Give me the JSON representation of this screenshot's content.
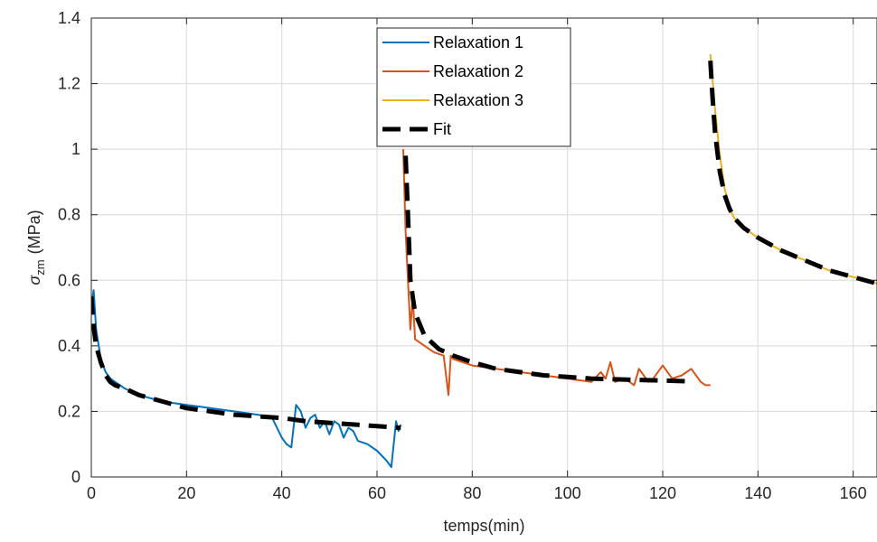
{
  "chart_data": {
    "type": "line",
    "title": "",
    "xlabel": "temps(min)",
    "ylabel_symbol": "σ",
    "ylabel_sub": "zm",
    "ylabel_unit": "(MPa)",
    "xlim": [
      0,
      165
    ],
    "ylim": [
      0,
      1.4
    ],
    "xticks": [
      0,
      20,
      40,
      60,
      80,
      100,
      120,
      140,
      160
    ],
    "yticks": [
      0,
      0.2,
      0.4,
      0.6,
      0.8,
      1,
      1.2,
      1.4
    ],
    "xtick_labels": [
      "0",
      "20",
      "40",
      "60",
      "80",
      "100",
      "120",
      "140",
      "160"
    ],
    "ytick_labels": [
      "0",
      "0.2",
      "0.4",
      "0.6",
      "0.8",
      "1",
      "1.2",
      "1.4"
    ],
    "grid": true,
    "legend_position": "top-center",
    "series": [
      {
        "name": "Relaxation 1",
        "color": "#0072BD",
        "style": "solid",
        "x": [
          0,
          0.5,
          1,
          2,
          3,
          4,
          5,
          7,
          10,
          15,
          20,
          25,
          30,
          35,
          38,
          40,
          41,
          42,
          43,
          44,
          45,
          46,
          47,
          48,
          49,
          50,
          51,
          52,
          53,
          54,
          55,
          56,
          58,
          60,
          62,
          63,
          64,
          64.5,
          65
        ],
        "y": [
          0.52,
          0.57,
          0.45,
          0.36,
          0.32,
          0.3,
          0.29,
          0.27,
          0.25,
          0.23,
          0.22,
          0.21,
          0.2,
          0.19,
          0.18,
          0.12,
          0.1,
          0.09,
          0.22,
          0.2,
          0.15,
          0.18,
          0.19,
          0.15,
          0.17,
          0.13,
          0.17,
          0.16,
          0.12,
          0.15,
          0.14,
          0.11,
          0.1,
          0.08,
          0.05,
          0.03,
          0.17,
          0.14,
          0.16
        ]
      },
      {
        "name": "Relaxation 2",
        "color": "#D95319",
        "style": "solid",
        "x": [
          65.5,
          66,
          66.5,
          67,
          67.5,
          68,
          70,
          72,
          74,
          75,
          75.5,
          76,
          80,
          85,
          90,
          95,
          100,
          105,
          107,
          108,
          109,
          110,
          112,
          114,
          115,
          117,
          118,
          120,
          122,
          124,
          126,
          128,
          129,
          130
        ],
        "y": [
          1.0,
          0.75,
          0.6,
          0.45,
          0.55,
          0.42,
          0.4,
          0.38,
          0.37,
          0.25,
          0.37,
          0.36,
          0.34,
          0.33,
          0.32,
          0.31,
          0.3,
          0.29,
          0.32,
          0.3,
          0.35,
          0.29,
          0.3,
          0.28,
          0.33,
          0.29,
          0.3,
          0.34,
          0.3,
          0.31,
          0.33,
          0.29,
          0.28,
          0.28
        ]
      },
      {
        "name": "Relaxation 3",
        "color": "#EDB120",
        "style": "solid",
        "x": [
          130,
          131,
          132,
          133,
          134,
          135,
          137,
          140,
          145,
          150,
          155,
          160,
          165
        ],
        "y": [
          1.29,
          1.12,
          0.98,
          0.88,
          0.82,
          0.79,
          0.76,
          0.73,
          0.69,
          0.66,
          0.63,
          0.61,
          0.59
        ]
      },
      {
        "name": "Fit",
        "color": "#000000",
        "style": "dashed",
        "x": [
          0,
          0.5,
          1,
          2,
          3,
          4,
          5,
          7,
          10,
          15,
          20,
          25,
          30,
          35,
          40,
          45,
          50,
          55,
          60,
          65,
          null,
          66,
          66.5,
          67,
          68,
          70,
          73,
          76,
          80,
          85,
          90,
          95,
          100,
          105,
          110,
          115,
          120,
          125,
          null,
          130,
          130.5,
          131,
          132,
          133,
          134,
          135,
          137,
          140,
          145,
          150,
          155,
          160,
          165
        ],
        "y": [
          0.55,
          0.46,
          0.4,
          0.35,
          0.31,
          0.29,
          0.28,
          0.27,
          0.25,
          0.23,
          0.21,
          0.2,
          0.19,
          0.185,
          0.18,
          0.17,
          0.165,
          0.16,
          0.155,
          0.15,
          null,
          0.98,
          0.8,
          0.6,
          0.5,
          0.43,
          0.39,
          0.37,
          0.35,
          0.33,
          0.32,
          0.31,
          0.305,
          0.3,
          0.298,
          0.296,
          0.294,
          0.292,
          null,
          1.27,
          1.15,
          1.05,
          0.93,
          0.86,
          0.82,
          0.79,
          0.76,
          0.73,
          0.69,
          0.66,
          0.63,
          0.61,
          0.59
        ]
      }
    ]
  }
}
